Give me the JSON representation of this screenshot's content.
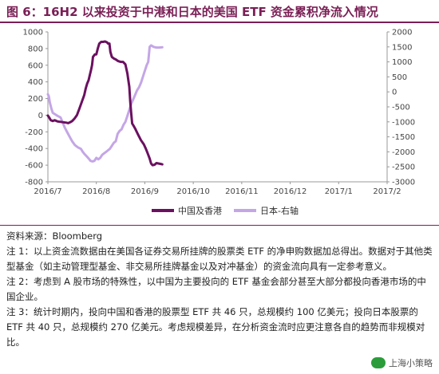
{
  "title": "图 6：16H2 以来投资于中港和日本的美国 ETF 资金累积净流入情况",
  "notes": {
    "source": "资料来源：Bloomberg",
    "note1": "注 1：以上资金流数据由在美国各证券交易所挂牌的股票类 ETF 的净申购数据加总得出。数据对于其他类型基金（如主动管理型基金、非交易所挂牌基金以及对冲基金）的资金流向具有一定参考意义。",
    "note2": "注 2：考虑到 A 股市场的特殊性，以中国为主要投向的 ETF 基金会部分甚至大部分都投向香港市场的中国企业。",
    "note3": "注 3：统计时期内，投向中国和香港的股票型 ETF 共 46 只，总规模约 100 亿美元；投向日本股票的 ETF 共 40 只，总规模约 270 亿美元。考虑规模差异，在分析资金流时应更注意各自的趋势而非规模对比。"
  },
  "watermark": "上海小策略",
  "colors": {
    "china": "#6b1060",
    "japan": "#c4a6e6",
    "title": "#7a1f55"
  },
  "chart_data": {
    "type": "line",
    "title": "16H2 以来投资于中港和日本的美国 ETF 资金累积净流入情况",
    "x": [
      "2016/7",
      "2016/8",
      "2016/9",
      "2016/10",
      "2016/11",
      "2016/12",
      "2017/1",
      "2017/2"
    ],
    "left_axis": {
      "ylim": [
        -800,
        1000
      ],
      "ticks": [
        1000,
        800,
        600,
        400,
        200,
        0,
        -200,
        -400,
        -600,
        -800
      ]
    },
    "right_axis": {
      "ylim": [
        -3000,
        2000
      ],
      "ticks": [
        2000,
        1500,
        1000,
        500,
        0,
        -500,
        -1000,
        -1500,
        -2000,
        -2500,
        -3000
      ]
    },
    "series": [
      {
        "name": "中国及香港",
        "axis": "left",
        "color": "#6b1060",
        "points": [
          [
            0.0,
            -5
          ],
          [
            0.03,
            -30
          ],
          [
            0.06,
            -60
          ],
          [
            0.1,
            -70
          ],
          [
            0.14,
            -60
          ],
          [
            0.2,
            -75
          ],
          [
            0.26,
            -80
          ],
          [
            0.32,
            -85
          ],
          [
            0.38,
            -90
          ],
          [
            0.42,
            -95
          ],
          [
            0.46,
            -85
          ],
          [
            0.5,
            -70
          ],
          [
            0.55,
            -40
          ],
          [
            0.6,
            0
          ],
          [
            0.65,
            80
          ],
          [
            0.7,
            160
          ],
          [
            0.75,
            240
          ],
          [
            0.78,
            320
          ],
          [
            0.81,
            380
          ],
          [
            0.84,
            420
          ],
          [
            0.86,
            470
          ],
          [
            0.89,
            540
          ],
          [
            0.91,
            600
          ],
          [
            0.93,
            700
          ],
          [
            0.97,
            730
          ],
          [
            1.0,
            730
          ],
          [
            1.03,
            800
          ],
          [
            1.06,
            860
          ],
          [
            1.1,
            880
          ],
          [
            1.14,
            880
          ],
          [
            1.18,
            885
          ],
          [
            1.22,
            875
          ],
          [
            1.24,
            860
          ],
          [
            1.27,
            860
          ],
          [
            1.29,
            760
          ],
          [
            1.32,
            700
          ],
          [
            1.36,
            680
          ],
          [
            1.4,
            670
          ],
          [
            1.45,
            650
          ],
          [
            1.5,
            640
          ],
          [
            1.55,
            640
          ],
          [
            1.6,
            610
          ],
          [
            1.64,
            500
          ],
          [
            1.68,
            340
          ],
          [
            1.7,
            160
          ],
          [
            1.72,
            20
          ],
          [
            1.74,
            -100
          ],
          [
            1.77,
            -130
          ],
          [
            1.8,
            -160
          ],
          [
            1.85,
            -220
          ],
          [
            1.92,
            -300
          ],
          [
            1.98,
            -350
          ],
          [
            2.02,
            -400
          ],
          [
            2.06,
            -460
          ],
          [
            2.1,
            -520
          ],
          [
            2.13,
            -580
          ],
          [
            2.16,
            -600
          ],
          [
            2.2,
            -595
          ],
          [
            2.24,
            -575
          ],
          [
            2.28,
            -580
          ],
          [
            2.32,
            -585
          ],
          [
            2.36,
            -590
          ]
        ]
      },
      {
        "name": "日本-右轴",
        "axis": "right",
        "color": "#c4a6e6",
        "points": [
          [
            0.0,
            -80
          ],
          [
            0.02,
            -150
          ],
          [
            0.04,
            -350
          ],
          [
            0.07,
            -550
          ],
          [
            0.1,
            -700
          ],
          [
            0.15,
            -750
          ],
          [
            0.2,
            -800
          ],
          [
            0.26,
            -850
          ],
          [
            0.3,
            -1000
          ],
          [
            0.35,
            -1200
          ],
          [
            0.4,
            -1350
          ],
          [
            0.45,
            -1500
          ],
          [
            0.5,
            -1650
          ],
          [
            0.56,
            -1780
          ],
          [
            0.62,
            -1850
          ],
          [
            0.68,
            -1900
          ],
          [
            0.72,
            -2000
          ],
          [
            0.76,
            -2080
          ],
          [
            0.8,
            -2150
          ],
          [
            0.84,
            -2220
          ],
          [
            0.88,
            -2300
          ],
          [
            0.92,
            -2320
          ],
          [
            0.96,
            -2300
          ],
          [
            1.0,
            -2200
          ],
          [
            1.04,
            -2250
          ],
          [
            1.08,
            -2200
          ],
          [
            1.12,
            -2100
          ],
          [
            1.16,
            -2050
          ],
          [
            1.2,
            -2000
          ],
          [
            1.24,
            -1950
          ],
          [
            1.28,
            -1900
          ],
          [
            1.32,
            -1800
          ],
          [
            1.36,
            -1700
          ],
          [
            1.4,
            -1650
          ],
          [
            1.44,
            -1400
          ],
          [
            1.48,
            -1300
          ],
          [
            1.52,
            -1250
          ],
          [
            1.56,
            -1100
          ],
          [
            1.6,
            -1000
          ],
          [
            1.64,
            -800
          ],
          [
            1.68,
            -600
          ],
          [
            1.72,
            -400
          ],
          [
            1.76,
            -250
          ],
          [
            1.8,
            -100
          ],
          [
            1.84,
            50
          ],
          [
            1.88,
            150
          ],
          [
            1.92,
            300
          ],
          [
            1.96,
            500
          ],
          [
            2.0,
            700
          ],
          [
            2.04,
            900
          ],
          [
            2.07,
            1000
          ],
          [
            2.1,
            1500
          ],
          [
            2.13,
            1550
          ],
          [
            2.18,
            1500
          ],
          [
            2.24,
            1480
          ],
          [
            2.3,
            1480
          ],
          [
            2.36,
            1490
          ]
        ]
      }
    ],
    "legend": "bottom-center",
    "grid": false
  }
}
